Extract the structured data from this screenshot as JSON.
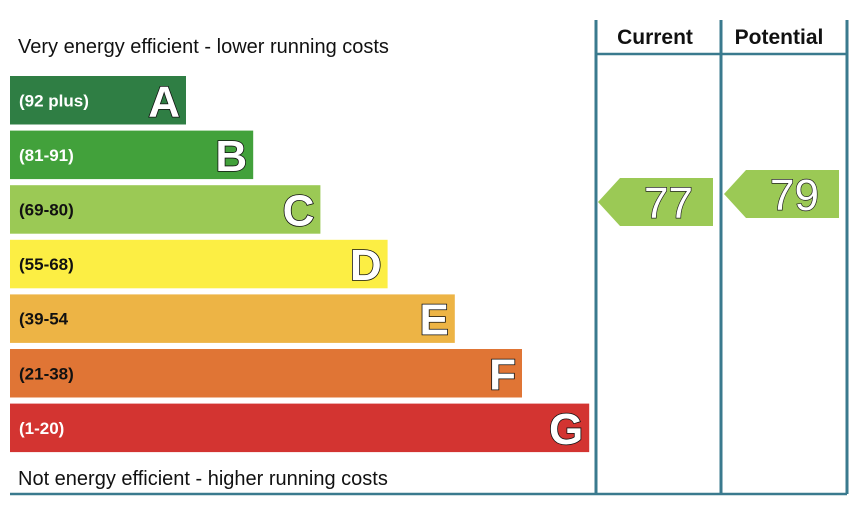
{
  "chart_data": {
    "type": "bar",
    "top_label": "Very energy efficient - lower running costs",
    "bottom_label": "Not energy efficient - higher running costs",
    "bands": [
      {
        "letter": "A",
        "range": "(92 plus)",
        "color": "#2f7e44",
        "text_color": "#ffffff"
      },
      {
        "letter": "B",
        "range": "(81-91)",
        "color": "#42a13b",
        "text_color": "#ffffff"
      },
      {
        "letter": "C",
        "range": "(69-80)",
        "color": "#9bc955",
        "text_color": "#111111"
      },
      {
        "letter": "D",
        "range": "(55-68)",
        "color": "#fcee44",
        "text_color": "#111111"
      },
      {
        "letter": "E",
        "range": "(39-54",
        "color": "#edb445",
        "text_color": "#111111"
      },
      {
        "letter": "F",
        "range": "(21-38)",
        "color": "#e07535",
        "text_color": "#111111"
      },
      {
        "letter": "G",
        "range": "(1-20)",
        "color": "#d33431",
        "text_color": "#ffffff"
      }
    ],
    "columns": [
      {
        "name": "Current",
        "value": 77,
        "band": "C"
      },
      {
        "name": "Potential",
        "value": 79,
        "band": "C"
      }
    ],
    "colors": {
      "frame": "#3a7a8e",
      "arrow": "#9bc955"
    }
  }
}
